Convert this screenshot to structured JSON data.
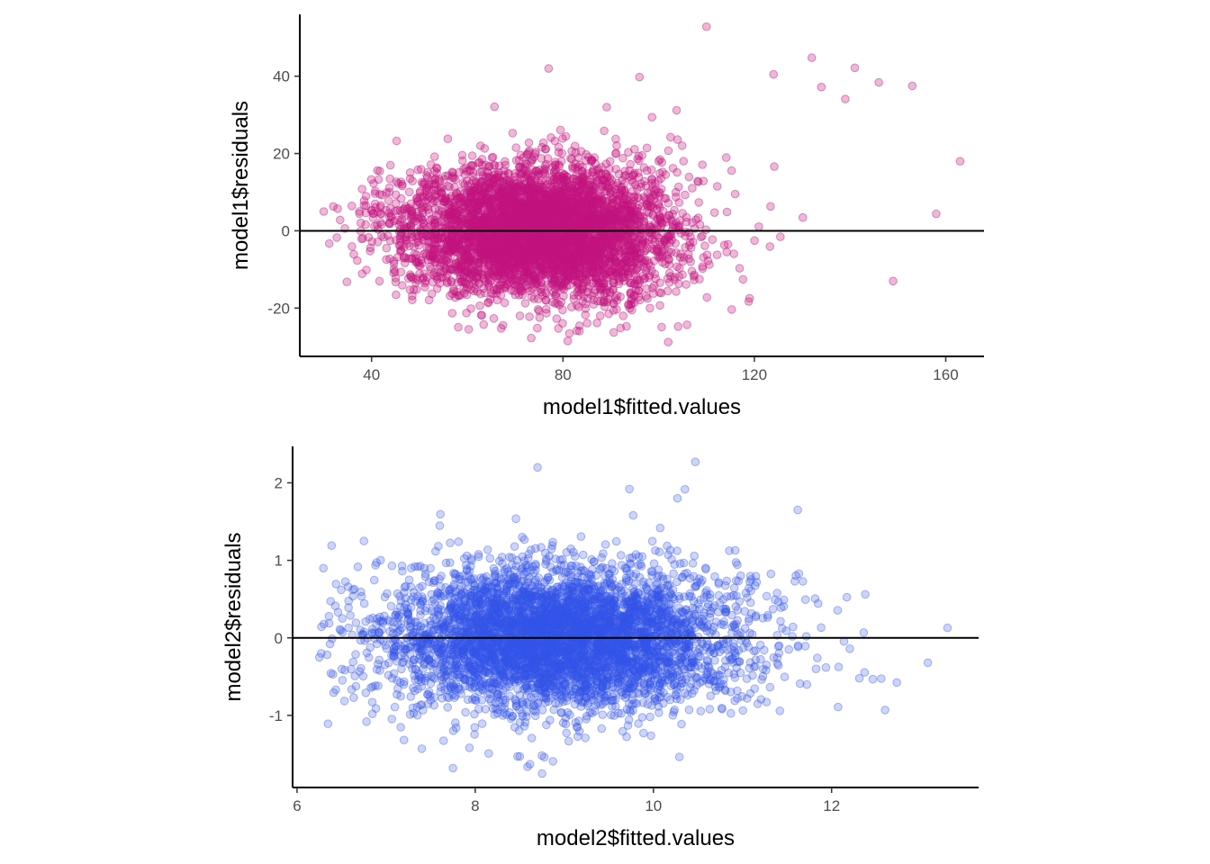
{
  "chart_data": [
    {
      "type": "scatter",
      "xlabel": "model1$fitted.values",
      "ylabel": "model1$residuals",
      "xlim": [
        25,
        168
      ],
      "ylim": [
        -32.5,
        56
      ],
      "x_ticks": [
        40,
        80,
        120,
        160
      ],
      "y_ticks": [
        -20,
        0,
        20,
        40
      ],
      "hline": 0,
      "grid": false,
      "color": "#C2157F",
      "point_alpha": 0.3,
      "n_points": 5000,
      "outliers": [
        {
          "x": 110,
          "y": 52.8
        },
        {
          "x": 77,
          "y": 42
        },
        {
          "x": 96,
          "y": 39.8
        },
        {
          "x": 132,
          "y": 44.8
        },
        {
          "x": 141,
          "y": 42.2
        },
        {
          "x": 124,
          "y": 40.5
        },
        {
          "x": 153,
          "y": 37.5
        },
        {
          "x": 146,
          "y": 38.4
        },
        {
          "x": 134,
          "y": 37.2
        },
        {
          "x": 139,
          "y": 34.1
        },
        {
          "x": 30,
          "y": 5
        },
        {
          "x": 32,
          "y": 6.3
        },
        {
          "x": 163,
          "y": 18
        },
        {
          "x": 158,
          "y": 4.4
        },
        {
          "x": 149,
          "y": -13
        },
        {
          "x": 81,
          "y": -28.5
        },
        {
          "x": 102,
          "y": -28.8
        },
        {
          "x": 71,
          "y": -22
        }
      ]
    },
    {
      "type": "scatter",
      "xlabel": "model2$fitted.values",
      "ylabel": "model2$residuals",
      "xlim": [
        5.95,
        13.65
      ],
      "ylim": [
        -1.93,
        2.47
      ],
      "x_ticks": [
        6,
        8,
        10,
        12
      ],
      "y_ticks": [
        -1,
        0,
        1,
        2
      ],
      "hline": 0,
      "grid": false,
      "color": "#3355E8",
      "point_alpha": 0.25,
      "n_points": 5000,
      "outliers": [
        {
          "x": 8.7,
          "y": 2.2
        },
        {
          "x": 10.47,
          "y": 2.27
        },
        {
          "x": 9.73,
          "y": 1.92
        },
        {
          "x": 10.27,
          "y": 1.8
        },
        {
          "x": 11.62,
          "y": 1.65
        },
        {
          "x": 6.25,
          "y": -0.25
        },
        {
          "x": 6.37,
          "y": -0.08
        },
        {
          "x": 13.3,
          "y": 0.13
        },
        {
          "x": 13.08,
          "y": -0.32
        },
        {
          "x": 12.6,
          "y": -0.93
        },
        {
          "x": 7.75,
          "y": -1.68
        },
        {
          "x": 8.75,
          "y": -1.75
        },
        {
          "x": 8.5,
          "y": -1.53
        },
        {
          "x": 6.78,
          "y": -1.08
        },
        {
          "x": 6.75,
          "y": 1.25
        }
      ]
    }
  ]
}
